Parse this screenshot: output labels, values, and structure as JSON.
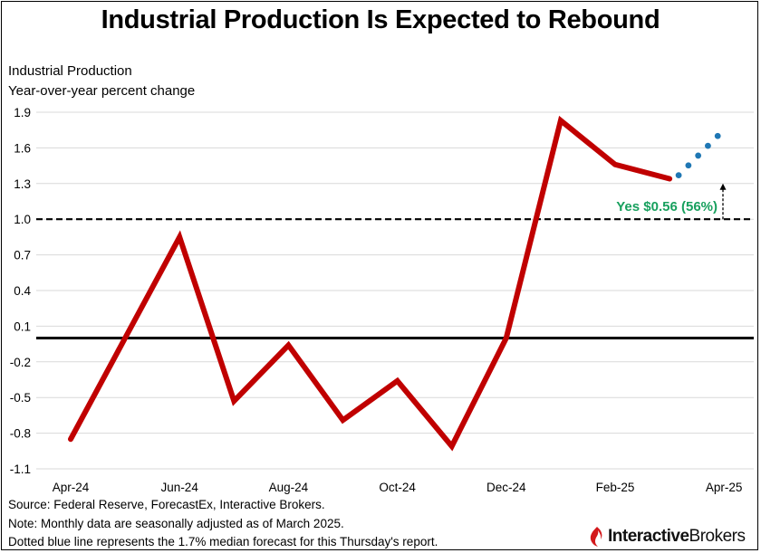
{
  "title": "Industrial Production Is Expected to Rebound",
  "colors": {
    "actual_line": "#c00000",
    "forecast_dots": "#1f77b4",
    "annotation": "#18a05e",
    "logo_red": "#d3191c"
  },
  "chart_data": {
    "type": "line",
    "title": "Industrial Production Is Expected to Rebound",
    "ylabel_line1": "Industrial Production",
    "ylabel_line2": "Year-over-year percent change",
    "ylim": [
      -1.1,
      1.9
    ],
    "yticks": [
      1.9,
      1.6,
      1.3,
      1.0,
      0.7,
      0.4,
      0.1,
      -0.2,
      -0.5,
      -0.8,
      -1.1
    ],
    "ytick_labels": [
      "1.9",
      "1.6",
      "1.3",
      "1.0",
      "0.7",
      "0.4",
      "0.1",
      "-0.2",
      "-0.5",
      "-0.8",
      "-1.1"
    ],
    "x_months": [
      "Apr-24",
      "May-24",
      "Jun-24",
      "Jul-24",
      "Aug-24",
      "Sep-24",
      "Oct-24",
      "Nov-24",
      "Dec-24",
      "Jan-25",
      "Feb-25",
      "Mar-25",
      "Apr-25"
    ],
    "xtick_labels": [
      "Apr-24",
      "Jun-24",
      "Aug-24",
      "Oct-24",
      "Dec-24",
      "Feb-25",
      "Apr-25"
    ],
    "grid": true,
    "series": [
      {
        "name": "Industrial Production YoY",
        "style": "solid",
        "x": [
          "Apr-24",
          "May-24",
          "Jun-24",
          "Jul-24",
          "Aug-24",
          "Sep-24",
          "Oct-24",
          "Nov-24",
          "Dec-24",
          "Jan-25",
          "Feb-25",
          "Mar-25"
        ],
        "values": [
          -0.85,
          0.0,
          0.85,
          -0.53,
          -0.06,
          -0.69,
          -0.36,
          -0.91,
          0.0,
          1.83,
          1.46,
          1.34
        ]
      },
      {
        "name": "Median forecast",
        "style": "dotted",
        "x_start": "Mar-25",
        "x_end": "Apr-25",
        "start_value": 1.37,
        "end_value": 1.7
      }
    ],
    "reference_lines": [
      {
        "name": "zero line",
        "value": 0.0,
        "style": "solid"
      },
      {
        "name": "threshold",
        "value": 1.0,
        "style": "dashed"
      }
    ],
    "annotation": {
      "text": "Yes $0.56 (56%)",
      "arrow_from": 1.0,
      "arrow_to": 1.3
    }
  },
  "notes": {
    "source": "Source: Federal Reserve, ForecastEx, Interactive Brokers.",
    "note": "Note: Monthly data are seasonally adjusted as of March 2025.",
    "dotted": "Dotted blue line represents the 1.7% median forecast for this Thursday's report."
  },
  "logo": {
    "part1": "Interactive",
    "part2": "Brokers"
  }
}
